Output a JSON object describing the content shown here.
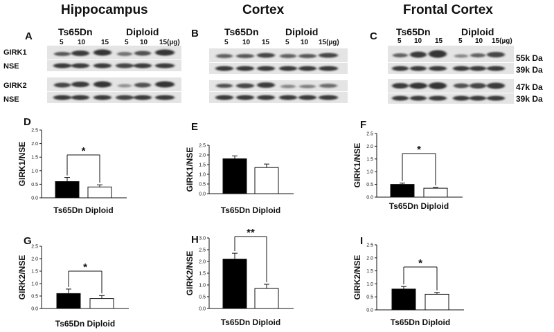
{
  "regions": [
    {
      "title": "Hippocampus",
      "letter": "A",
      "groups": [
        "Ts65Dn",
        "Diploid"
      ],
      "lanes": [
        "5",
        "10",
        "15",
        "5",
        "10",
        "15(µg)"
      ],
      "rows": [
        "GIRK1",
        "NSE",
        "GIRK2",
        "NSE"
      ]
    },
    {
      "title": "Cortex",
      "letter": "B",
      "groups": [
        "Ts65Dn",
        "Diploid"
      ],
      "lanes": [
        "5",
        "10",
        "15",
        "5",
        "10",
        "15(µg)"
      ]
    },
    {
      "title": "Frontal Cortex",
      "letter": "C",
      "groups": [
        "Ts65Dn",
        "Diploid"
      ],
      "lanes": [
        "5",
        "10",
        "15",
        "5",
        "10",
        "15(µg)"
      ],
      "mw": [
        "55k Da",
        "39k Da",
        "47k Da",
        "39k Da"
      ]
    }
  ],
  "colors": {
    "ts65dn_bar": "#000000",
    "diploid_bar": "#ffffff",
    "band": "#2a2a2a",
    "membrane": "#e4e4e4"
  },
  "chart_data": [
    {
      "panel": "D",
      "type": "bar",
      "categories": [
        "Ts65Dn",
        "Diploid"
      ],
      "values": [
        0.6,
        0.4
      ],
      "errors": [
        0.15,
        0.08
      ],
      "ylim": [
        0,
        2.5
      ],
      "yticks": [
        "0.0",
        "0.5",
        "1.0",
        "1.5",
        "2.0",
        "2.5"
      ],
      "ylabel": "GIRK1/NSE",
      "xlabel": "Ts65Dn Diploid",
      "significance": "*"
    },
    {
      "panel": "E",
      "type": "bar",
      "categories": [
        "Ts65Dn",
        "Diploid"
      ],
      "values": [
        1.8,
        1.35
      ],
      "errors": [
        0.15,
        0.18
      ],
      "ylim": [
        0,
        2.5
      ],
      "yticks": [
        "0.0",
        "0.5",
        "1.0",
        "1.5",
        "2.0",
        "2.5"
      ],
      "ylabel": "GIRK1/NSE",
      "xlabel": "Ts65Dn Diploid",
      "significance": ""
    },
    {
      "panel": "F",
      "type": "bar",
      "categories": [
        "Ts65Dn",
        "Diploid"
      ],
      "values": [
        0.5,
        0.35
      ],
      "errors": [
        0.05,
        0.03
      ],
      "ylim": [
        0,
        2.5
      ],
      "yticks": [
        "0.0",
        "0.5",
        "1.0",
        "1.5",
        "2.0",
        "2.5"
      ],
      "ylabel": "GIRK1/NSE",
      "xlabel": "Ts65Dn Diploid",
      "significance": "*"
    },
    {
      "panel": "G",
      "type": "bar",
      "categories": [
        "Ts65Dn",
        "Diploid"
      ],
      "values": [
        0.6,
        0.4
      ],
      "errors": [
        0.18,
        0.12
      ],
      "ylim": [
        0,
        2.5
      ],
      "yticks": [
        "0.0",
        "0.5",
        "1.0",
        "1.5",
        "2.0",
        "2.5"
      ],
      "ylabel": "GIRK2/NSE",
      "xlabel": "Ts65Dn Diploid",
      "significance": "*"
    },
    {
      "panel": "H",
      "type": "bar",
      "categories": [
        "Ts65Dn",
        "Diploid"
      ],
      "values": [
        2.1,
        0.85
      ],
      "errors": [
        0.25,
        0.18
      ],
      "ylim": [
        0,
        3.0
      ],
      "yticks": [
        "0.0",
        "0.5",
        "1.0",
        "1.5",
        "2.0",
        "2.5",
        "3.0"
      ],
      "ylabel": "GIRK2/NSE",
      "xlabel": "Ts65Dn Diploid",
      "significance": "**"
    },
    {
      "panel": "I",
      "type": "bar",
      "categories": [
        "Ts65Dn",
        "Diploid"
      ],
      "values": [
        0.8,
        0.6
      ],
      "errors": [
        0.1,
        0.07
      ],
      "ylim": [
        0,
        2.5
      ],
      "yticks": [
        "0.0",
        "0.5",
        "1.0",
        "1.5",
        "2.0",
        "2.5"
      ],
      "ylabel": "GIRK2/NSE",
      "xlabel": "Ts65Dn Diploid",
      "significance": "*"
    }
  ]
}
